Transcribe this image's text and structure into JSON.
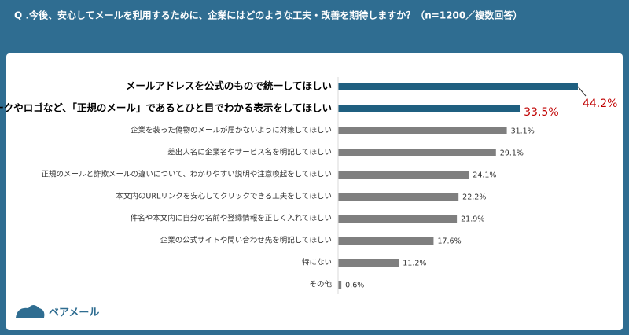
{
  "chart_data": {
    "type": "hbar",
    "title": "Q .今後、安心してメールを利用するために、企業にはどのような工夫・改善を期待しますか？（n=1200／複数回答）",
    "brand": "ベアメール",
    "categories": [
      "メールアドレスを公式のもので統一してほしい",
      "公式マークやロゴなど、「正規のメール」であるとひと目でわかる表示をしてほしい",
      "企業を装った偽物のメールが届かないように対策してほしい",
      "差出人名に企業名やサービス名を明記してほしい",
      "正規のメールと詐欺メールの違いについて、わかりやすい説明や注意喚起をしてほしい",
      "本文内のURLリンクを安心してクリックできる工夫をしてほしい",
      "件名や本文内に自分の名前や登録情報を正しく入れてほしい",
      "企業の公式サイトや問い合わせ先を明記してほしい",
      "特にない",
      "その他"
    ],
    "values": [
      44.2,
      33.5,
      31.1,
      29.1,
      24.1,
      22.2,
      21.9,
      17.6,
      11.2,
      0.6
    ],
    "value_labels": [
      "44.2%",
      "33.5%",
      "31.1%",
      "29.1%",
      "24.1%",
      "22.2%",
      "21.9%",
      "17.6%",
      "11.2%",
      "0.6%"
    ],
    "colors": [
      "#1f5f80",
      "#1f5f80",
      "#7f7f7f",
      "#7f7f7f",
      "#7f7f7f",
      "#7f7f7f",
      "#7f7f7f",
      "#7f7f7f",
      "#7f7f7f",
      "#7f7f7f"
    ],
    "highlight": [
      true,
      true,
      false,
      false,
      false,
      false,
      false,
      false,
      false,
      false
    ],
    "highlight_label_color": "#c00000",
    "xlim": [
      0,
      50
    ]
  }
}
